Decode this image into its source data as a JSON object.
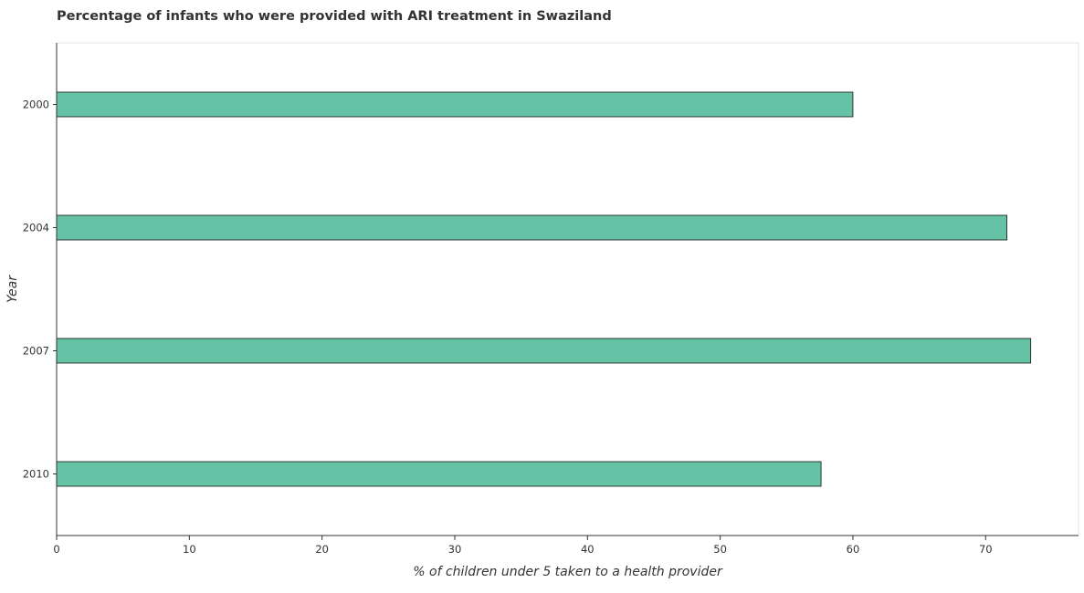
{
  "chart_data": {
    "type": "bar",
    "orientation": "horizontal",
    "title": "Percentage of infants who were provided with ARI treatment in Swaziland",
    "xlabel": "% of children under 5 taken to a health provider",
    "ylabel": "Year",
    "categories": [
      "2000",
      "2004",
      "2007",
      "2010"
    ],
    "values": [
      60.0,
      71.6,
      73.4,
      57.6
    ],
    "xlim": [
      0,
      77
    ],
    "xticks": [
      0,
      10,
      20,
      30,
      40,
      50,
      60,
      70
    ],
    "grid": false,
    "bar_color": "#66c2a5",
    "bar_edge_color": "#111111"
  }
}
